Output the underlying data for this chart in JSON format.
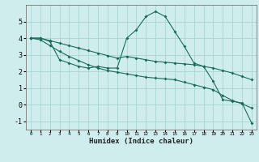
{
  "x": [
    0,
    1,
    2,
    3,
    4,
    5,
    6,
    7,
    8,
    9,
    10,
    11,
    12,
    13,
    14,
    15,
    16,
    17,
    18,
    19,
    20,
    21,
    22,
    23
  ],
  "y_main": [
    4.0,
    4.0,
    3.8,
    2.7,
    2.5,
    2.3,
    2.2,
    2.3,
    2.2,
    2.2,
    4.0,
    4.5,
    5.3,
    5.6,
    5.3,
    4.4,
    3.5,
    2.5,
    2.3,
    1.4,
    0.3,
    0.2,
    0.1,
    -1.1
  ],
  "y_upper": [
    4.0,
    4.0,
    3.85,
    3.7,
    3.55,
    3.4,
    3.25,
    3.1,
    2.95,
    2.8,
    2.9,
    2.8,
    2.7,
    2.6,
    2.55,
    2.5,
    2.45,
    2.4,
    2.3,
    2.2,
    2.05,
    1.9,
    1.7,
    1.5
  ],
  "y_lower": [
    4.0,
    3.9,
    3.55,
    3.2,
    2.9,
    2.65,
    2.4,
    2.2,
    2.05,
    1.95,
    1.85,
    1.75,
    1.65,
    1.6,
    1.55,
    1.5,
    1.35,
    1.2,
    1.05,
    0.9,
    0.55,
    0.25,
    0.05,
    -0.2
  ],
  "line_color": "#1a6b5a",
  "bg_color": "#d0eded",
  "grid_color": "#aad4d4",
  "xlabel": "Humidex (Indice chaleur)",
  "ylim": [
    -1.5,
    6.0
  ],
  "xlim": [
    -0.5,
    23.5
  ],
  "yticks": [
    -1,
    0,
    1,
    2,
    3,
    4,
    5
  ],
  "xtick_labels": [
    "0",
    "1",
    "2",
    "3",
    "4",
    "5",
    "6",
    "7",
    "8",
    "9",
    "10",
    "11",
    "12",
    "13",
    "14",
    "15",
    "16",
    "17",
    "18",
    "19",
    "20",
    "21",
    "22",
    "23"
  ],
  "marker": "D",
  "markersize": 2.0,
  "linewidth": 0.8
}
